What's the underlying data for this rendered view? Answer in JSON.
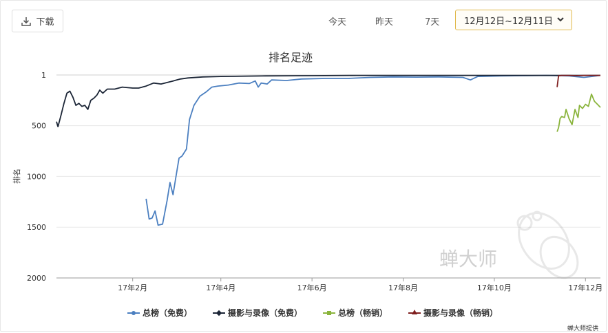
{
  "toolbar": {
    "download_label": "下载",
    "range_today": "今天",
    "range_yesterday": "昨天",
    "range_7days": "7天",
    "date_range_value": "12月12日~12月11日"
  },
  "footer": {
    "credit": "蝉大师提供"
  },
  "watermark": {
    "text": "蝉大师"
  },
  "colors": {
    "free_total": "#4b7fc0",
    "free_photo": "#1b2536",
    "paid_total": "#8ab43c",
    "paid_photo": "#7f1f1f",
    "date_border": "#e0b84a"
  },
  "chart_data": {
    "type": "line",
    "title": "排名足迹",
    "ylabel": "排名",
    "xlabel": "",
    "y_reversed": true,
    "ylim": [
      1,
      2000
    ],
    "yticks": [
      1,
      500,
      1000,
      1500,
      2000
    ],
    "xlim": [
      "2016-12-12",
      "2017-12-11"
    ],
    "xticks": [
      {
        "label": "17年2月",
        "date": "2017-02-01"
      },
      {
        "label": "17年4月",
        "date": "2017-04-01"
      },
      {
        "label": "17年6月",
        "date": "2017-06-01"
      },
      {
        "label": "17年8月",
        "date": "2017-08-01"
      },
      {
        "label": "17年10月",
        "date": "2017-10-01"
      },
      {
        "label": "17年12月",
        "date": "2017-12-01"
      }
    ],
    "grid": true,
    "legend_position": "bottom",
    "series": [
      {
        "name": "总榜（免费）",
        "color": "#4b7fc0",
        "points": [
          [
            "2017-02-10",
            1220
          ],
          [
            "2017-02-12",
            1420
          ],
          [
            "2017-02-14",
            1410
          ],
          [
            "2017-02-16",
            1340
          ],
          [
            "2017-02-18",
            1480
          ],
          [
            "2017-02-21",
            1470
          ],
          [
            "2017-02-24",
            1240
          ],
          [
            "2017-02-26",
            1060
          ],
          [
            "2017-02-28",
            1180
          ],
          [
            "2017-03-02",
            1000
          ],
          [
            "2017-03-04",
            820
          ],
          [
            "2017-03-06",
            800
          ],
          [
            "2017-03-09",
            730
          ],
          [
            "2017-03-11",
            440
          ],
          [
            "2017-03-14",
            300
          ],
          [
            "2017-03-18",
            210
          ],
          [
            "2017-03-22",
            170
          ],
          [
            "2017-03-26",
            120
          ],
          [
            "2017-03-30",
            110
          ],
          [
            "2017-04-06",
            100
          ],
          [
            "2017-04-13",
            80
          ],
          [
            "2017-04-20",
            85
          ],
          [
            "2017-04-24",
            60
          ],
          [
            "2017-04-26",
            120
          ],
          [
            "2017-04-28",
            80
          ],
          [
            "2017-05-02",
            90
          ],
          [
            "2017-05-05",
            50
          ],
          [
            "2017-05-15",
            55
          ],
          [
            "2017-05-25",
            40
          ],
          [
            "2017-06-10",
            35
          ],
          [
            "2017-06-25",
            35
          ],
          [
            "2017-07-10",
            25
          ],
          [
            "2017-07-25",
            20
          ],
          [
            "2017-08-10",
            22
          ],
          [
            "2017-08-25",
            20
          ],
          [
            "2017-09-10",
            25
          ],
          [
            "2017-09-15",
            50
          ],
          [
            "2017-09-20",
            15
          ],
          [
            "2017-10-05",
            10
          ],
          [
            "2017-10-20",
            8
          ],
          [
            "2017-11-05",
            5
          ],
          [
            "2017-11-20",
            10
          ],
          [
            "2017-11-30",
            25
          ],
          [
            "2017-12-11",
            5
          ]
        ]
      },
      {
        "name": "摄影与录像（免费）",
        "color": "#1b2536",
        "points": [
          [
            "2016-12-12",
            460
          ],
          [
            "2016-12-13",
            510
          ],
          [
            "2016-12-15",
            400
          ],
          [
            "2016-12-17",
            280
          ],
          [
            "2016-12-19",
            180
          ],
          [
            "2016-12-21",
            160
          ],
          [
            "2016-12-23",
            220
          ],
          [
            "2016-12-25",
            300
          ],
          [
            "2016-12-27",
            280
          ],
          [
            "2016-12-29",
            310
          ],
          [
            "2016-12-31",
            300
          ],
          [
            "2017-01-02",
            340
          ],
          [
            "2017-01-04",
            250
          ],
          [
            "2017-01-06",
            230
          ],
          [
            "2017-01-08",
            200
          ],
          [
            "2017-01-10",
            150
          ],
          [
            "2017-01-12",
            180
          ],
          [
            "2017-01-15",
            140
          ],
          [
            "2017-01-20",
            140
          ],
          [
            "2017-01-25",
            120
          ],
          [
            "2017-02-01",
            130
          ],
          [
            "2017-02-05",
            130
          ],
          [
            "2017-02-10",
            110
          ],
          [
            "2017-02-15",
            80
          ],
          [
            "2017-02-20",
            90
          ],
          [
            "2017-02-28",
            60
          ],
          [
            "2017-03-05",
            40
          ],
          [
            "2017-03-10",
            30
          ],
          [
            "2017-03-20",
            20
          ],
          [
            "2017-04-01",
            15
          ],
          [
            "2017-05-01",
            10
          ],
          [
            "2017-06-01",
            8
          ],
          [
            "2017-07-01",
            5
          ],
          [
            "2017-08-01",
            5
          ],
          [
            "2017-09-01",
            5
          ],
          [
            "2017-10-01",
            5
          ],
          [
            "2017-11-01",
            5
          ],
          [
            "2017-12-11",
            5
          ]
        ]
      },
      {
        "name": "总榜（畅销）",
        "color": "#8ab43c",
        "points": [
          [
            "2017-11-12",
            560
          ],
          [
            "2017-11-13",
            520
          ],
          [
            "2017-11-14",
            430
          ],
          [
            "2017-11-15",
            410
          ],
          [
            "2017-11-17",
            420
          ],
          [
            "2017-11-18",
            340
          ],
          [
            "2017-11-20",
            430
          ],
          [
            "2017-11-22",
            490
          ],
          [
            "2017-11-24",
            340
          ],
          [
            "2017-11-26",
            420
          ],
          [
            "2017-11-27",
            300
          ],
          [
            "2017-11-29",
            330
          ],
          [
            "2017-12-01",
            290
          ],
          [
            "2017-12-03",
            310
          ],
          [
            "2017-12-05",
            190
          ],
          [
            "2017-12-07",
            260
          ],
          [
            "2017-12-09",
            290
          ],
          [
            "2017-12-11",
            320
          ]
        ]
      },
      {
        "name": "摄影与录像（畅销）",
        "color": "#7f1f1f",
        "points": [
          [
            "2017-11-12",
            120
          ],
          [
            "2017-11-13",
            10
          ],
          [
            "2017-11-15",
            5
          ],
          [
            "2017-11-20",
            5
          ],
          [
            "2017-11-25",
            8
          ],
          [
            "2017-11-30",
            5
          ],
          [
            "2017-12-05",
            5
          ],
          [
            "2017-12-11",
            5
          ]
        ]
      }
    ]
  }
}
